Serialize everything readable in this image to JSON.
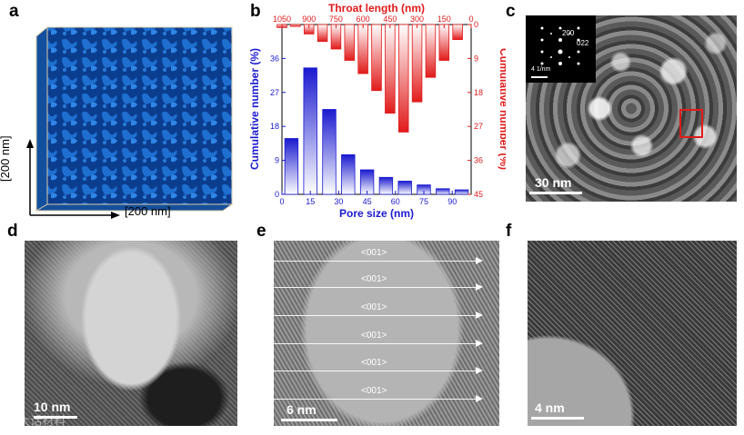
{
  "panels": {
    "a": {
      "label": "a",
      "axis_y": "[200 nm]",
      "axis_x": "[200 nm]"
    },
    "b": {
      "label": "b"
    },
    "c": {
      "label": "c",
      "scale": "30 nm",
      "inset_spot_1": "200",
      "inset_spot_2": "022",
      "inset_scale": "4 1/nm"
    },
    "d": {
      "label": "d",
      "scale": "10 nm",
      "watermark": "© 大话材料"
    },
    "e": {
      "label": "e",
      "scale": "6 nm",
      "directions": [
        "<001>",
        "<001>",
        "<001>",
        "<001>",
        "<001>",
        "<001>"
      ]
    },
    "f": {
      "label": "f",
      "scale": "4 nm"
    }
  },
  "chart_data": {
    "type": "bar",
    "pore": {
      "xlabel": "Pore size (nm)",
      "ylabel": "Cumulative number (%)",
      "x": [
        5,
        15,
        25,
        35,
        45,
        55,
        65,
        75,
        85,
        95
      ],
      "values": [
        14.8,
        33.5,
        22.5,
        10.5,
        6.5,
        4.5,
        3.5,
        2.5,
        1.5,
        1.2
      ],
      "ylim": [
        0,
        45
      ],
      "yticks": [
        0,
        9,
        18,
        27,
        36
      ],
      "xticks": [
        0,
        15,
        30,
        45,
        60,
        75,
        90
      ],
      "color": "#1a1ad0"
    },
    "throat": {
      "xlabel": "Throat length (nm)",
      "ylabel": "Cumulative number (%)",
      "x": [
        1050,
        975,
        900,
        825,
        750,
        675,
        600,
        525,
        450,
        375,
        300,
        225,
        150,
        75
      ],
      "values": [
        0.8,
        0.5,
        2.5,
        4.5,
        6.5,
        9.5,
        13.0,
        17.5,
        23.5,
        28.5,
        20.5,
        14.0,
        9.5,
        4.0
      ],
      "ylim": [
        0,
        45
      ],
      "yticks": [
        0,
        9,
        18,
        27,
        36,
        45
      ],
      "xticks": [
        1050,
        900,
        750,
        600,
        450,
        300,
        150,
        0
      ],
      "color": "#e11b1b"
    }
  }
}
